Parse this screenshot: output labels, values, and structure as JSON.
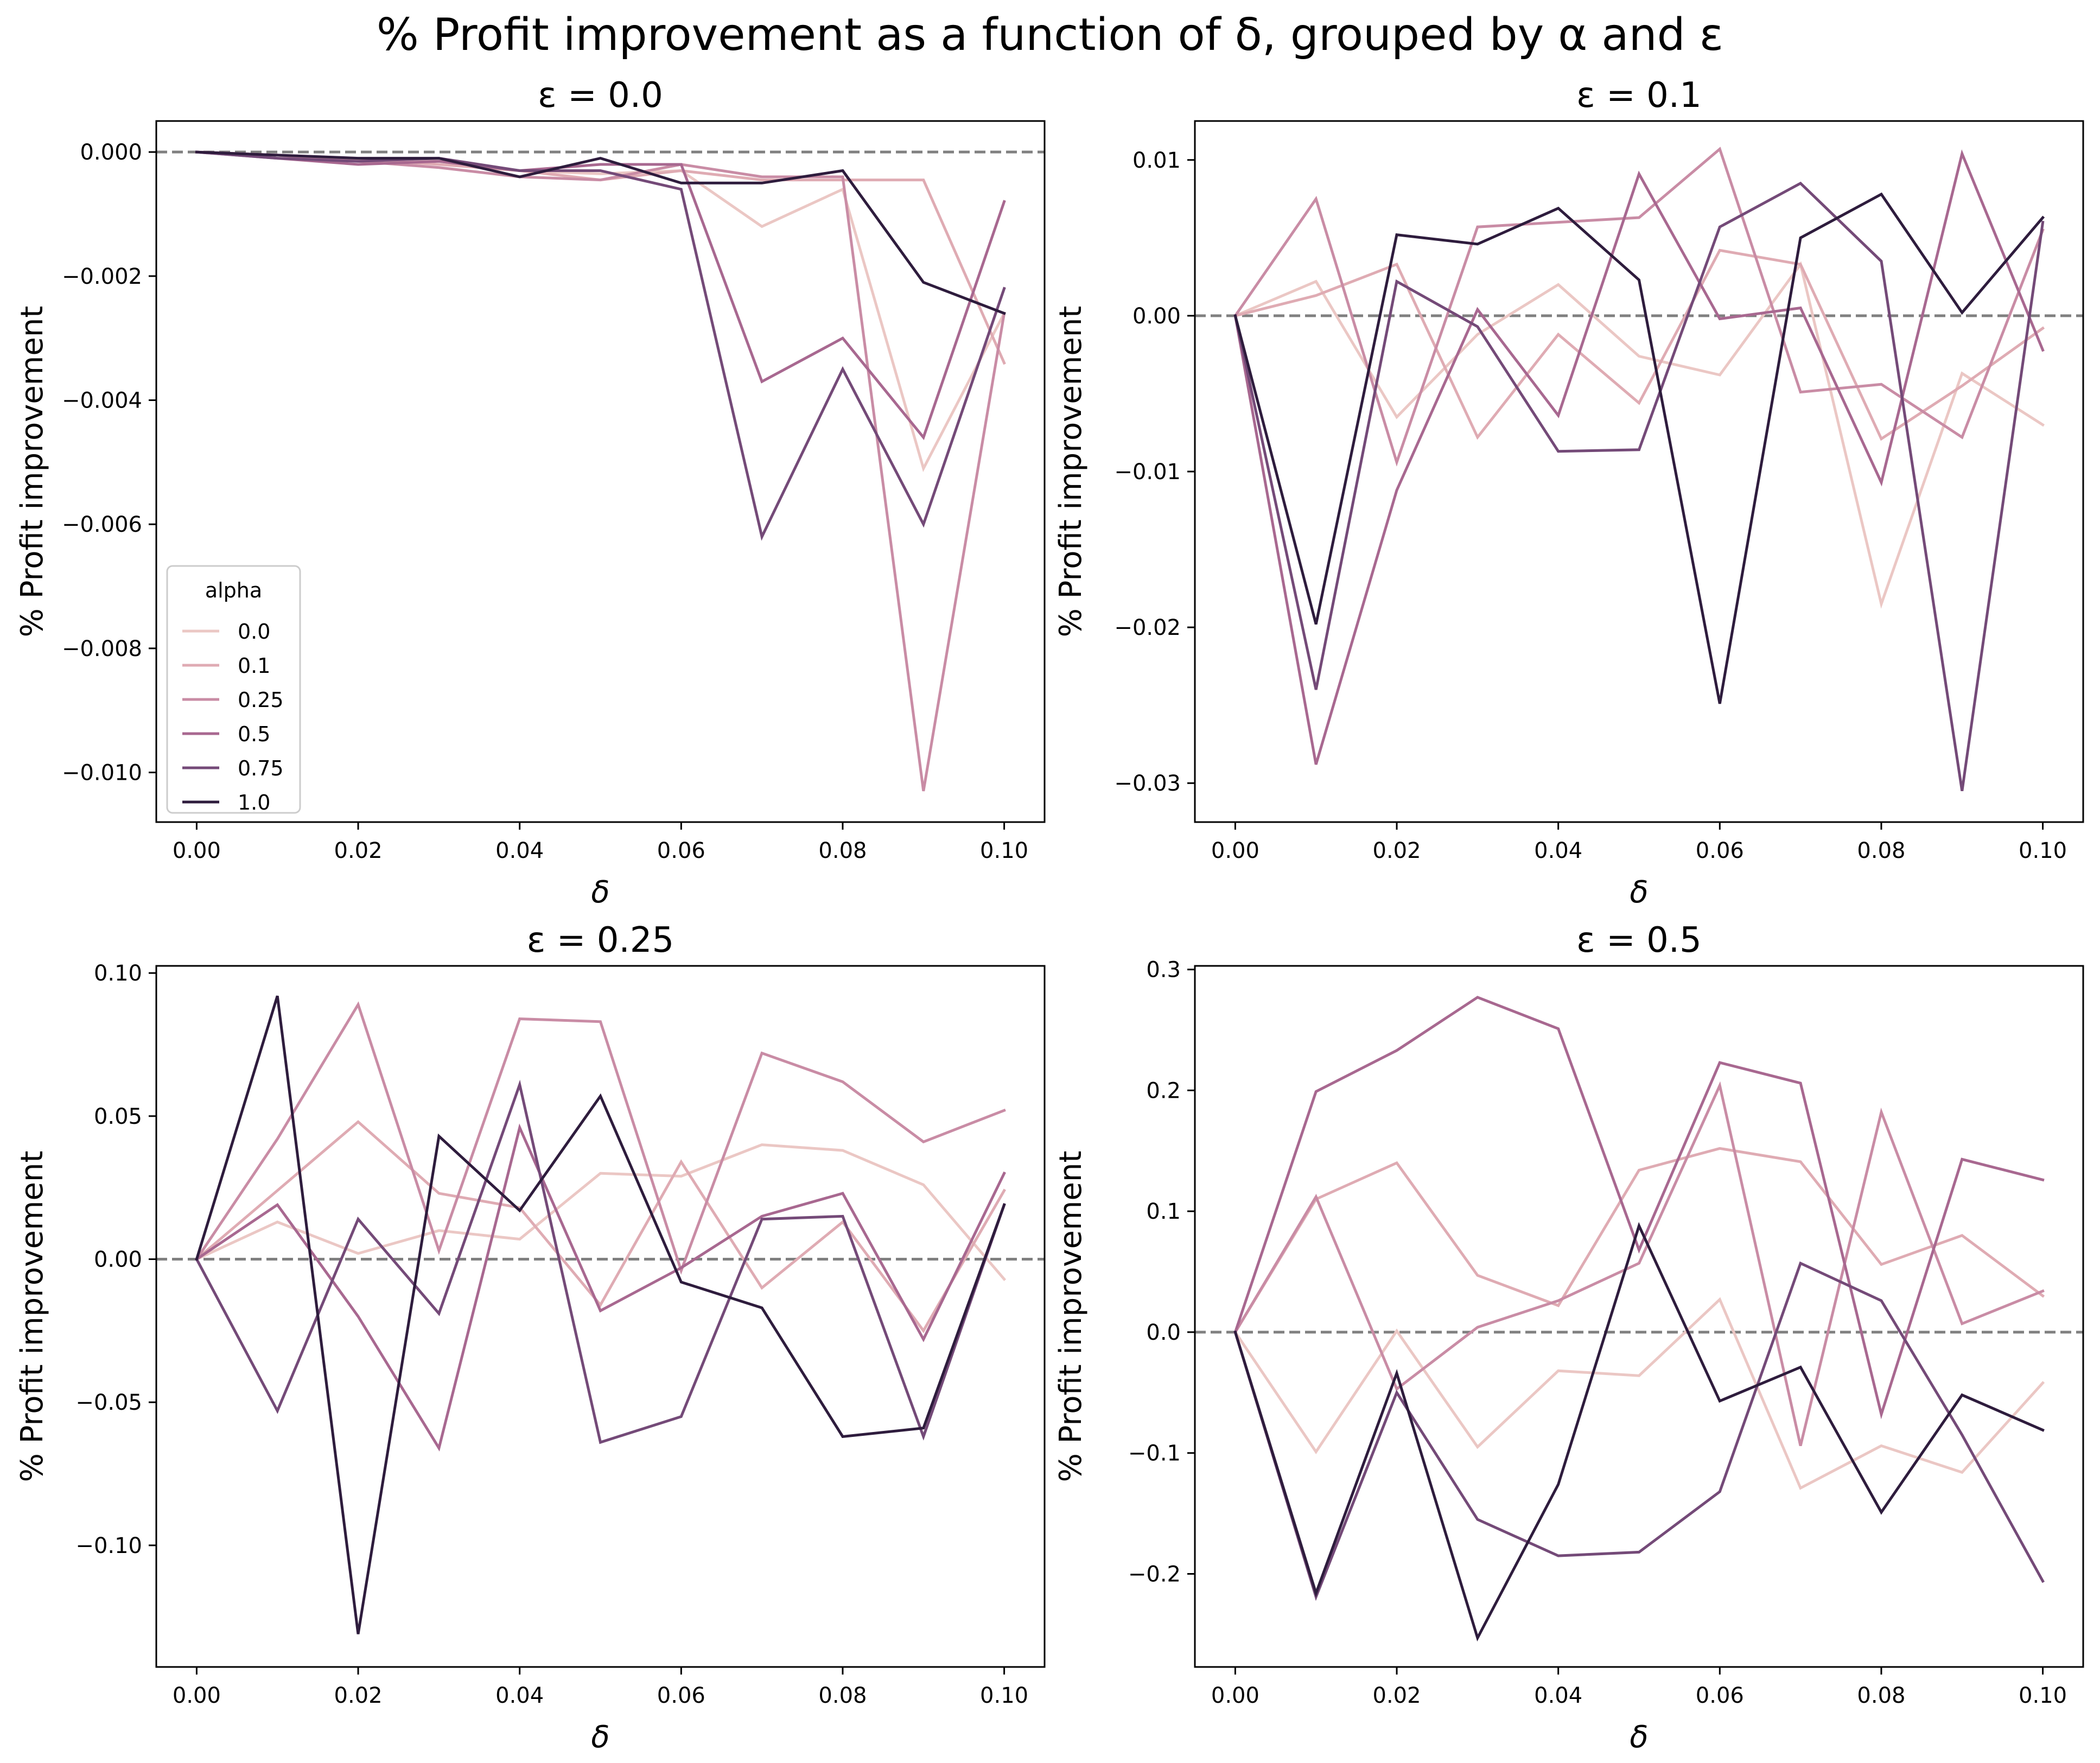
{
  "figure_title": "% Profit improvement as a function of δ, grouped by α and ε",
  "legend": {
    "title": "alpha",
    "entries": [
      "0.0",
      "0.1",
      "0.25",
      "0.5",
      "0.75",
      "1.0"
    ],
    "placement": "lower-left",
    "panel": 0
  },
  "series_colors": [
    "#ebc7c4",
    "#dfabb3",
    "#c98ca5",
    "#a86890",
    "#744a78",
    "#2e1c3d"
  ],
  "baseline_color": "#808080",
  "chart_data": [
    {
      "type": "line",
      "title": "ε = 0.0",
      "xlabel": "δ",
      "ylabel": "% Profit improvement",
      "x": [
        0.0,
        0.01,
        0.02,
        0.03,
        0.04,
        0.05,
        0.06,
        0.07,
        0.08,
        0.09,
        0.1
      ],
      "xlim": [
        -0.005,
        0.105
      ],
      "ylim": [
        -0.0108,
        0.0005
      ],
      "xticks": [
        0.0,
        0.02,
        0.04,
        0.06,
        0.08,
        0.1
      ],
      "xtick_labels": [
        "0.00",
        "0.02",
        "0.04",
        "0.06",
        "0.08",
        "0.10"
      ],
      "yticks": [
        0.0,
        -0.002,
        -0.004,
        -0.006,
        -0.008,
        -0.01
      ],
      "ytick_labels": [
        "0.000",
        "−0.002",
        "−0.004",
        "−0.006",
        "−0.008",
        "−0.010"
      ],
      "hline": 0,
      "series": [
        {
          "name": "0.0",
          "values": [
            0,
            -5e-05,
            -0.0001,
            -0.00015,
            -0.0003,
            -0.00035,
            -0.0003,
            -0.0012,
            -0.0006,
            -0.0051,
            -0.0026
          ]
        },
        {
          "name": "0.1",
          "values": [
            0,
            -5e-05,
            -0.00012,
            -0.0002,
            -0.0003,
            -0.00045,
            -0.0003,
            -0.00045,
            -0.00045,
            -0.00045,
            -0.0034
          ]
        },
        {
          "name": "0.25",
          "values": [
            0,
            -5e-05,
            -0.00015,
            -0.00025,
            -0.0004,
            -0.00045,
            -0.0002,
            -0.0004,
            -0.0004,
            -0.0103,
            -0.0026
          ]
        },
        {
          "name": "0.5",
          "values": [
            0,
            -0.0001,
            -0.0002,
            -0.00015,
            -0.0003,
            -0.0002,
            -0.0002,
            -0.0037,
            -0.003,
            -0.0046,
            -0.0008
          ]
        },
        {
          "name": "0.75",
          "values": [
            0,
            -0.0001,
            -0.00015,
            -0.0001,
            -0.0003,
            -0.0003,
            -0.0006,
            -0.0062,
            -0.0035,
            -0.006,
            -0.0022
          ]
        },
        {
          "name": "1.0",
          "values": [
            0,
            -5e-05,
            -0.0001,
            -0.0001,
            -0.0004,
            -0.0001,
            -0.0005,
            -0.0005,
            -0.0003,
            -0.0021,
            -0.0026
          ]
        }
      ]
    },
    {
      "type": "line",
      "title": "ε = 0.1",
      "xlabel": "δ",
      "ylabel": "% Profit improvement",
      "x": [
        0.0,
        0.01,
        0.02,
        0.03,
        0.04,
        0.05,
        0.06,
        0.07,
        0.08,
        0.09,
        0.1
      ],
      "xlim": [
        -0.005,
        0.105
      ],
      "ylim": [
        -0.0325,
        0.0125
      ],
      "xticks": [
        0.0,
        0.02,
        0.04,
        0.06,
        0.08,
        0.1
      ],
      "xtick_labels": [
        "0.00",
        "0.02",
        "0.04",
        "0.06",
        "0.08",
        "0.10"
      ],
      "yticks": [
        0.01,
        0.0,
        -0.01,
        -0.02,
        -0.03
      ],
      "ytick_labels": [
        "0.01",
        "0.00",
        "−0.01",
        "−0.02",
        "−0.03"
      ],
      "hline": 0,
      "series": [
        {
          "name": "0.0",
          "values": [
            0,
            0.0022,
            -0.0065,
            -0.0012,
            0.002,
            -0.0026,
            -0.0038,
            0.0033,
            -0.0185,
            -0.0037,
            -0.007
          ]
        },
        {
          "name": "0.1",
          "values": [
            0,
            0.0013,
            0.0033,
            -0.0078,
            -0.0012,
            -0.0056,
            0.0042,
            0.0033,
            -0.0079,
            -0.0045,
            -0.0008
          ]
        },
        {
          "name": "0.25",
          "values": [
            0,
            0.0075,
            -0.0094,
            0.0057,
            0.006,
            0.0063,
            0.0107,
            -0.0049,
            -0.0044,
            -0.0078,
            0.0055
          ]
        },
        {
          "name": "0.5",
          "values": [
            0,
            -0.0288,
            -0.0112,
            0.0004,
            -0.0064,
            0.0091,
            -0.0002,
            0.0005,
            -0.0107,
            0.0104,
            -0.0022
          ]
        },
        {
          "name": "0.75",
          "values": [
            0,
            -0.024,
            0.0022,
            -0.0007,
            -0.0087,
            -0.0086,
            0.0057,
            0.0085,
            0.0035,
            -0.0305,
            0.006
          ]
        },
        {
          "name": "1.0",
          "values": [
            0,
            -0.0198,
            0.0052,
            0.0046,
            0.0069,
            0.0023,
            -0.0249,
            0.005,
            0.0078,
            0.0002,
            0.0063
          ]
        }
      ]
    },
    {
      "type": "line",
      "title": "ε = 0.25",
      "xlabel": "δ",
      "ylabel": "% Profit improvement",
      "x": [
        0.0,
        0.01,
        0.02,
        0.03,
        0.04,
        0.05,
        0.06,
        0.07,
        0.08,
        0.09,
        0.1
      ],
      "xlim": [
        -0.005,
        0.105
      ],
      "ylim": [
        -0.1425,
        0.1025
      ],
      "xticks": [
        0.0,
        0.02,
        0.04,
        0.06,
        0.08,
        0.1
      ],
      "xtick_labels": [
        "0.00",
        "0.02",
        "0.04",
        "0.06",
        "0.08",
        "0.10"
      ],
      "yticks": [
        0.1,
        0.05,
        0.0,
        -0.05,
        -0.1
      ],
      "ytick_labels": [
        "0.10",
        "0.05",
        "0.00",
        "−0.05",
        "−0.10"
      ],
      "hline": 0,
      "series": [
        {
          "name": "0.0",
          "values": [
            0,
            0.013,
            0.002,
            0.01,
            0.007,
            0.03,
            0.029,
            0.04,
            0.038,
            0.026,
            -0.007
          ]
        },
        {
          "name": "0.1",
          "values": [
            0,
            0.024,
            0.048,
            0.023,
            0.018,
            -0.016,
            0.034,
            -0.01,
            0.013,
            -0.025,
            0.024
          ]
        },
        {
          "name": "0.25",
          "values": [
            0,
            0.042,
            0.089,
            0.003,
            0.084,
            0.083,
            -0.004,
            0.072,
            0.062,
            0.041,
            0.052
          ]
        },
        {
          "name": "0.5",
          "values": [
            0,
            0.019,
            -0.02,
            -0.066,
            0.046,
            -0.018,
            -0.003,
            0.015,
            0.023,
            -0.028,
            0.03
          ]
        },
        {
          "name": "0.75",
          "values": [
            0,
            -0.053,
            0.014,
            -0.019,
            0.061,
            -0.064,
            -0.055,
            0.014,
            0.015,
            -0.062,
            0.019
          ]
        },
        {
          "name": "1.0",
          "values": [
            0,
            0.092,
            -0.131,
            0.043,
            0.017,
            0.057,
            -0.008,
            -0.017,
            -0.062,
            -0.059,
            0.019
          ]
        }
      ]
    },
    {
      "type": "line",
      "title": "ε = 0.5",
      "xlabel": "δ",
      "ylabel": "% Profit improvement",
      "x": [
        0.0,
        0.01,
        0.02,
        0.03,
        0.04,
        0.05,
        0.06,
        0.07,
        0.08,
        0.09,
        0.1
      ],
      "xlim": [
        -0.005,
        0.105
      ],
      "ylim": [
        -0.277,
        0.303
      ],
      "xticks": [
        0.0,
        0.02,
        0.04,
        0.06,
        0.08,
        0.1
      ],
      "xtick_labels": [
        "0.00",
        "0.02",
        "0.04",
        "0.06",
        "0.08",
        "0.10"
      ],
      "yticks": [
        0.3,
        0.2,
        0.1,
        0.0,
        -0.1,
        -0.2
      ],
      "ytick_labels": [
        "0.3",
        "0.2",
        "0.1",
        "0.0",
        "−0.1",
        "−0.2"
      ],
      "hline": 0,
      "series": [
        {
          "name": "0.0",
          "values": [
            0,
            -0.099,
            0.001,
            -0.095,
            -0.032,
            -0.036,
            0.027,
            -0.129,
            -0.094,
            -0.116,
            -0.042
          ]
        },
        {
          "name": "0.1",
          "values": [
            0,
            0.11,
            0.14,
            0.047,
            0.022,
            0.134,
            0.152,
            0.141,
            0.056,
            0.08,
            0.03
          ]
        },
        {
          "name": "0.25",
          "values": [
            0,
            0.112,
            -0.047,
            0.004,
            0.026,
            0.057,
            0.204,
            -0.094,
            0.182,
            0.007,
            0.034
          ]
        },
        {
          "name": "0.5",
          "values": [
            0,
            0.199,
            0.233,
            0.277,
            0.251,
            0.068,
            0.223,
            0.206,
            -0.068,
            0.143,
            0.126
          ]
        },
        {
          "name": "0.75",
          "values": [
            0,
            -0.219,
            -0.05,
            -0.155,
            -0.185,
            -0.182,
            -0.132,
            0.057,
            0.026,
            -0.085,
            -0.206
          ]
        },
        {
          "name": "1.0",
          "values": [
            0,
            -0.216,
            -0.034,
            -0.253,
            -0.126,
            0.088,
            -0.057,
            -0.029,
            -0.149,
            -0.052,
            -0.081
          ]
        }
      ]
    }
  ]
}
